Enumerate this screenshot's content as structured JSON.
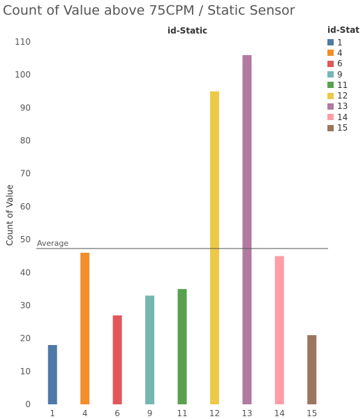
{
  "title": "Count of Value above 75CPM / Static Sensor",
  "legend": {
    "title": "id-Stat",
    "items": [
      {
        "label": "1",
        "color": "#4e79a7"
      },
      {
        "label": "4",
        "color": "#f28e2b"
      },
      {
        "label": "6",
        "color": "#e15759"
      },
      {
        "label": "9",
        "color": "#76b7b2"
      },
      {
        "label": "11",
        "color": "#59a14f"
      },
      {
        "label": "12",
        "color": "#edc948"
      },
      {
        "label": "13",
        "color": "#b07aa1"
      },
      {
        "label": "14",
        "color": "#ff9da7"
      },
      {
        "label": "15",
        "color": "#9c755f"
      }
    ]
  },
  "chart_data": {
    "type": "bar",
    "title": "Count of Value above 75CPM / Static Sensor",
    "column_header": "id-Static",
    "xlabel": "",
    "ylabel": "Count of Value",
    "categories": [
      "1",
      "4",
      "6",
      "9",
      "11",
      "12",
      "13",
      "14",
      "15"
    ],
    "values": [
      18,
      46,
      27,
      33,
      35,
      95,
      106,
      45,
      21
    ],
    "colors": [
      "#4e79a7",
      "#f28e2b",
      "#e15759",
      "#76b7b2",
      "#59a14f",
      "#edc948",
      "#b07aa1",
      "#ff9da7",
      "#9c755f"
    ],
    "ylim": [
      0,
      110
    ],
    "yticks": [
      0,
      10,
      20,
      30,
      40,
      50,
      60,
      70,
      80,
      90,
      100,
      110
    ],
    "reference_line": {
      "label": "Average",
      "value": 47.3
    },
    "grid": false,
    "legend_position": "right"
  }
}
